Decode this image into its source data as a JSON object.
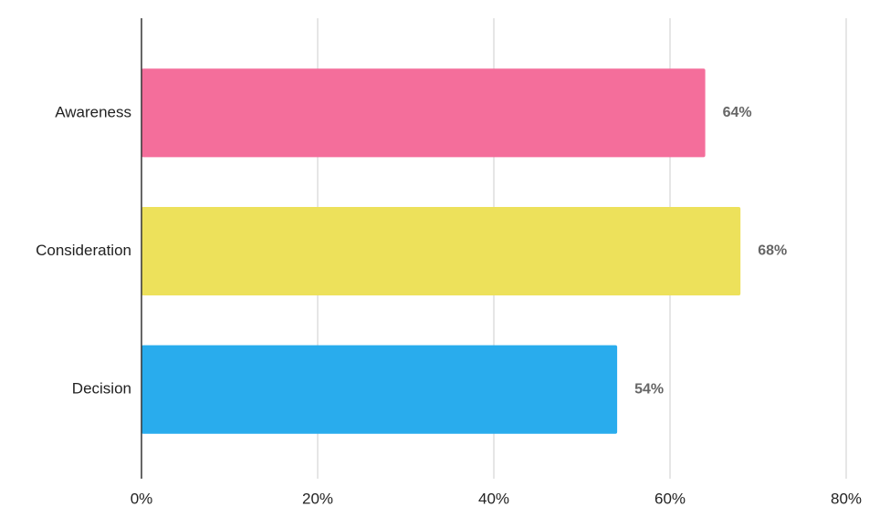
{
  "chart_data": {
    "type": "bar",
    "orientation": "horizontal",
    "categories": [
      "Awareness",
      "Consideration",
      "Decision"
    ],
    "values": [
      64,
      68,
      54
    ],
    "value_labels": [
      "64%",
      "68%",
      "54%"
    ],
    "colors": [
      "#f46e9b",
      "#ede15b",
      "#29aced"
    ],
    "xlim": [
      0,
      80
    ],
    "xticks": [
      {
        "value": 0,
        "label": "0%"
      },
      {
        "value": 20,
        "label": "20%"
      },
      {
        "value": 40,
        "label": "40%"
      },
      {
        "value": 60,
        "label": "60%"
      },
      {
        "value": 80,
        "label": "80%"
      }
    ],
    "grid": true
  }
}
